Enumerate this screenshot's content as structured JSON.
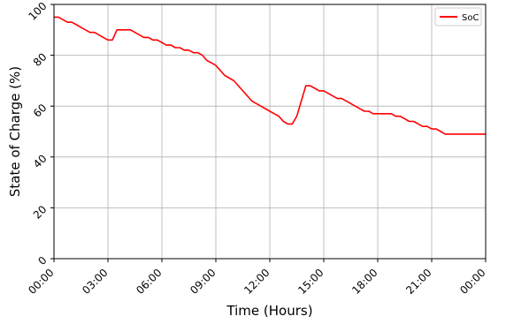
{
  "chart_data": {
    "type": "line",
    "xlabel": "Time (Hours)",
    "ylabel": "State of Charge (%)",
    "xlim": [
      0,
      24
    ],
    "ylim": [
      0,
      100
    ],
    "xticks": [
      {
        "value": 0,
        "label": "00:00"
      },
      {
        "value": 3,
        "label": "03:00"
      },
      {
        "value": 6,
        "label": "06:00"
      },
      {
        "value": 9,
        "label": "09:00"
      },
      {
        "value": 12,
        "label": "12:00"
      },
      {
        "value": 15,
        "label": "15:00"
      },
      {
        "value": 18,
        "label": "18:00"
      },
      {
        "value": 21,
        "label": "21:00"
      },
      {
        "value": 24,
        "label": "00:00"
      }
    ],
    "yticks": [
      {
        "value": 0,
        "label": "0"
      },
      {
        "value": 20,
        "label": "20"
      },
      {
        "value": 40,
        "label": "40"
      },
      {
        "value": 60,
        "label": "60"
      },
      {
        "value": 80,
        "label": "80"
      },
      {
        "value": 100,
        "label": "100"
      }
    ],
    "grid": true,
    "legend": "top-right",
    "series": [
      {
        "name": "SoC",
        "color": "#ff0000",
        "x": [
          0,
          0.25,
          0.5,
          0.75,
          1,
          1.25,
          1.5,
          1.75,
          2,
          2.25,
          2.5,
          2.75,
          3,
          3.25,
          3.5,
          3.75,
          4,
          4.25,
          4.5,
          4.75,
          5,
          5.25,
          5.5,
          5.75,
          6,
          6.25,
          6.5,
          6.75,
          7,
          7.25,
          7.5,
          7.75,
          8,
          8.25,
          8.5,
          8.75,
          9,
          9.25,
          9.5,
          9.75,
          10,
          10.5,
          11,
          11.5,
          12,
          12.5,
          12.75,
          13,
          13.25,
          13.5,
          13.75,
          14,
          14.25,
          14.5,
          14.75,
          15,
          15.25,
          15.5,
          15.75,
          16,
          16.25,
          16.5,
          16.75,
          17,
          17.25,
          17.5,
          17.75,
          18,
          18.25,
          18.5,
          18.75,
          19,
          19.25,
          19.5,
          19.75,
          20,
          20.25,
          20.5,
          20.75,
          21,
          21.25,
          21.5,
          21.75,
          22,
          22.5,
          23,
          23.5,
          24
        ],
        "y": [
          95,
          95,
          94,
          93,
          93,
          92,
          91,
          90,
          89,
          89,
          88,
          87,
          86,
          86,
          90,
          90,
          90,
          90,
          89,
          88,
          87,
          87,
          86,
          86,
          85,
          84,
          84,
          83,
          83,
          82,
          82,
          81,
          81,
          80,
          78,
          77,
          76,
          74,
          72,
          71,
          70,
          66,
          62,
          60,
          58,
          56,
          54,
          53,
          53,
          56,
          62,
          68,
          68,
          67,
          66,
          66,
          65,
          64,
          63,
          63,
          62,
          61,
          60,
          59,
          58,
          58,
          57,
          57,
          57,
          57,
          57,
          56,
          56,
          55,
          54,
          54,
          53,
          52,
          52,
          51,
          51,
          50,
          49,
          49,
          49,
          49,
          49,
          49
        ]
      }
    ]
  }
}
